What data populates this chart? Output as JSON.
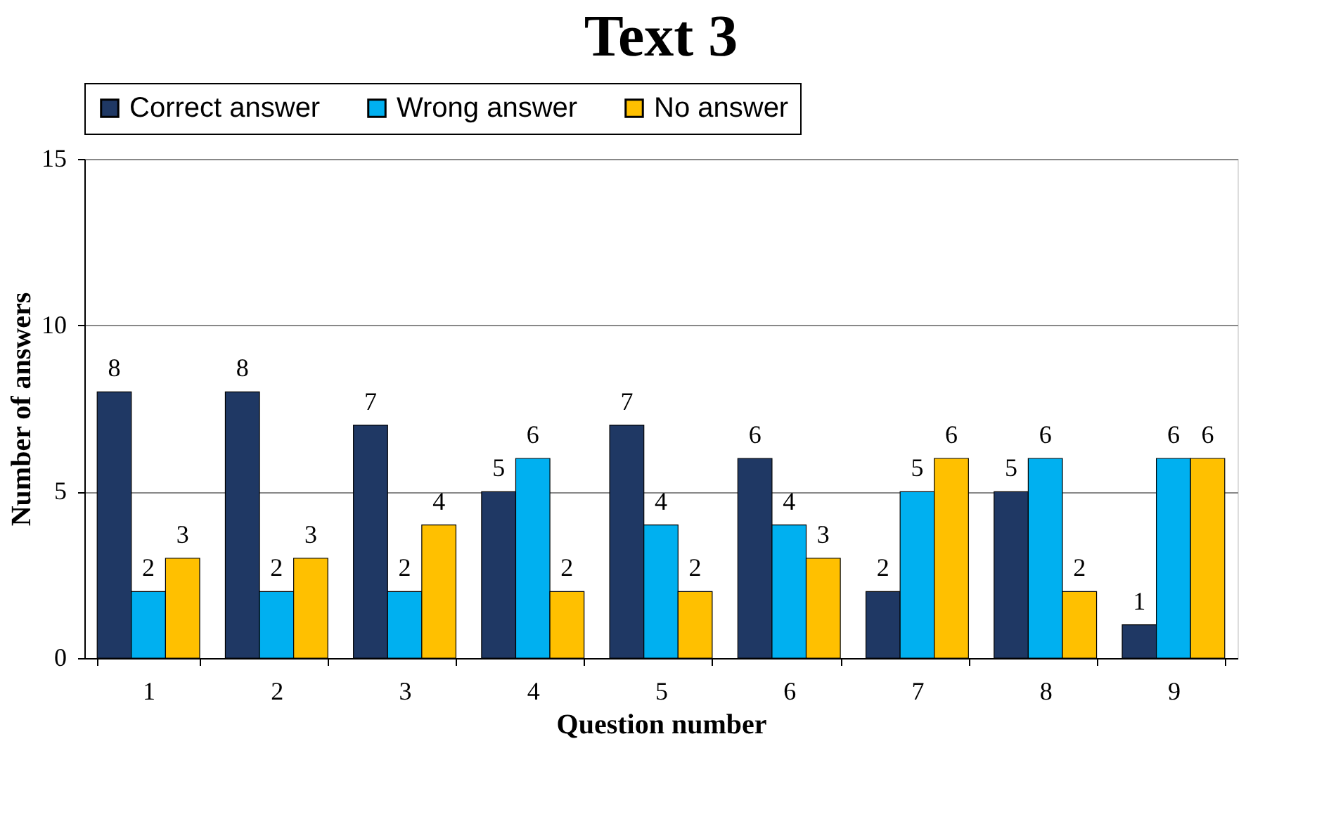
{
  "chart_data": {
    "type": "bar",
    "title": "Text 3",
    "xlabel": "Question number",
    "ylabel": "Number of answers",
    "categories": [
      "1",
      "2",
      "3",
      "4",
      "5",
      "6",
      "7",
      "8",
      "9"
    ],
    "series": [
      {
        "name": "Correct answer",
        "color": "#1f3864",
        "values": [
          8,
          8,
          7,
          5,
          7,
          6,
          2,
          5,
          1
        ]
      },
      {
        "name": "Wrong answer",
        "color": "#00b0f0",
        "values": [
          2,
          2,
          2,
          6,
          4,
          4,
          5,
          6,
          6
        ]
      },
      {
        "name": "No answer",
        "color": "#ffc000",
        "values": [
          3,
          3,
          4,
          2,
          2,
          3,
          6,
          2,
          6
        ]
      }
    ],
    "ylim": [
      0,
      15
    ],
    "yticks": [
      0,
      5,
      10,
      15
    ],
    "grid": "y",
    "legend": "top",
    "data_labels": true
  }
}
